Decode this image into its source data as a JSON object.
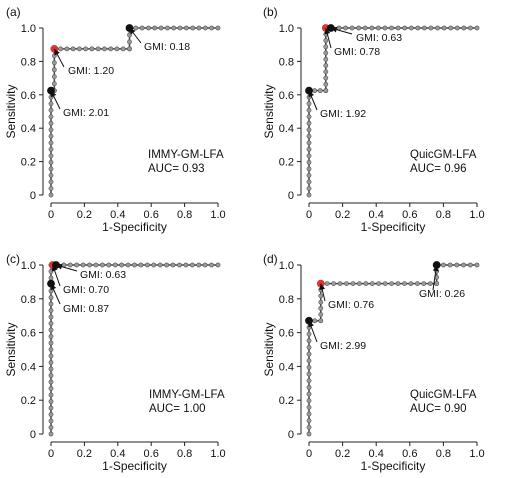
{
  "chart_data": [
    {
      "type": "line",
      "panel_label": "(a)",
      "xlabel": "1-Specificity",
      "ylabel": "Sensitivity",
      "xlim": [
        0,
        1
      ],
      "ylim": [
        0,
        1
      ],
      "xticks": [
        "0",
        "0.2",
        "0.4",
        "0.6",
        "0.8",
        "1.0"
      ],
      "yticks": [
        "0",
        "0.2",
        "0.4",
        "0.6",
        "0.8",
        "1.0"
      ],
      "box_lines": [
        "IMMY-GM-LFA",
        "AUC= 0.93"
      ],
      "roc_vertices": [
        [
          0,
          0
        ],
        [
          0,
          0.625
        ],
        [
          0.02,
          0.625
        ],
        [
          0.02,
          0.875
        ],
        [
          0.47,
          0.875
        ],
        [
          0.47,
          1.0
        ],
        [
          1.0,
          1.0
        ]
      ],
      "annotations": [
        {
          "text": "GMI: 2.01",
          "x": 0.0,
          "y": 0.625,
          "color": "#111111"
        },
        {
          "text": "GMI: 1.20",
          "x": 0.02,
          "y": 0.875,
          "color": "#dd3333"
        },
        {
          "text": "GMI: 0.18",
          "x": 0.47,
          "y": 1.0,
          "color": "#111111"
        }
      ]
    },
    {
      "type": "line",
      "panel_label": "(b)",
      "xlabel": "1-Specificity",
      "ylabel": "Sensitivity",
      "xlim": [
        0,
        1
      ],
      "ylim": [
        0,
        1
      ],
      "xticks": [
        "0",
        "0.2",
        "0.4",
        "0.6",
        "0.8",
        "1.0"
      ],
      "yticks": [
        "0",
        "0.2",
        "0.4",
        "0.6",
        "0.8",
        "1.0"
      ],
      "box_lines": [
        "QuicGM-LFA",
        "AUC= 0.96"
      ],
      "roc_vertices": [
        [
          0,
          0
        ],
        [
          0,
          0.625
        ],
        [
          0.1,
          0.625
        ],
        [
          0.1,
          1.0
        ],
        [
          1.0,
          1.0
        ]
      ],
      "annotations": [
        {
          "text": "GMI: 1.92",
          "x": 0.0,
          "y": 0.625,
          "color": "#111111"
        },
        {
          "text": "GMI: 0.78",
          "x": 0.1,
          "y": 1.0,
          "color": "#dd3333"
        },
        {
          "text": "GMI: 0.63",
          "x": 0.13,
          "y": 1.0,
          "color": "#111111"
        }
      ]
    },
    {
      "type": "line",
      "panel_label": "(c)",
      "xlabel": "1-Specificity",
      "ylabel": "Sensitivity",
      "xlim": [
        0,
        1
      ],
      "ylim": [
        0,
        1
      ],
      "xticks": [
        "0",
        "0.2",
        "0.4",
        "0.6",
        "0.8",
        "1.0"
      ],
      "yticks": [
        "0",
        "0.2",
        "0.4",
        "0.6",
        "0.8",
        "1.0"
      ],
      "box_lines": [
        "IMMY-GM-LFA",
        "AUC= 1.00"
      ],
      "roc_vertices": [
        [
          0,
          0
        ],
        [
          0,
          1.0
        ],
        [
          1.0,
          1.0
        ]
      ],
      "annotations": [
        {
          "text": "GMI: 0.87",
          "x": 0.0,
          "y": 0.89,
          "color": "#111111"
        },
        {
          "text": "GMI: 0.70",
          "x": 0.01,
          "y": 1.0,
          "color": "#dd3333"
        },
        {
          "text": "GMI: 0.63",
          "x": 0.03,
          "y": 1.0,
          "color": "#111111"
        }
      ]
    },
    {
      "type": "line",
      "panel_label": "(d)",
      "xlabel": "1-Specificity",
      "ylabel": "Sensitivity",
      "xlim": [
        0,
        1
      ],
      "ylim": [
        0,
        1
      ],
      "xticks": [
        "0",
        "0.2",
        "0.4",
        "0.6",
        "0.8",
        "1.0"
      ],
      "yticks": [
        "0",
        "0.2",
        "0.4",
        "0.6",
        "0.8",
        "1.0"
      ],
      "box_lines": [
        "QuicGM-LFA",
        "AUC= 0.90"
      ],
      "roc_vertices": [
        [
          0,
          0
        ],
        [
          0,
          0.67
        ],
        [
          0.07,
          0.67
        ],
        [
          0.07,
          0.89
        ],
        [
          0.76,
          0.89
        ],
        [
          0.76,
          1.0
        ],
        [
          1.0,
          1.0
        ]
      ],
      "annotations": [
        {
          "text": "GMI: 2.99",
          "x": 0.0,
          "y": 0.67,
          "color": "#111111"
        },
        {
          "text": "GMI: 0.76",
          "x": 0.07,
          "y": 0.89,
          "color": "#dd3333"
        },
        {
          "text": "GMI: 0.26",
          "x": 0.76,
          "y": 1.0,
          "color": "#111111"
        }
      ]
    }
  ]
}
